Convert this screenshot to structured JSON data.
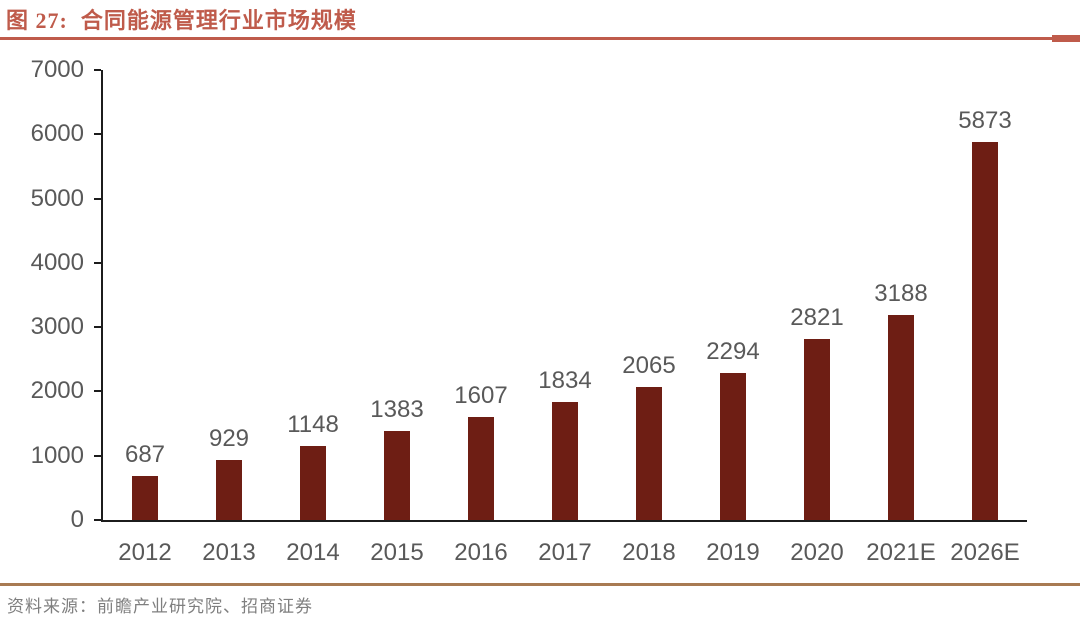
{
  "figure": {
    "title": "图 27:  合同能源管理行业市场规模",
    "source": "资料来源：前瞻产业研究院、招商证券"
  },
  "colors": {
    "title": "#bf5b4b",
    "title_rule": "#bf5b4b",
    "bottom_rule": "#a87a52",
    "bar": "#6e1e14",
    "axis": "#1c1c1c",
    "label": "#595959",
    "source_text": "#7f7f7f"
  },
  "chart_data": {
    "type": "bar",
    "title": "合同能源管理行业市场规模",
    "categories": [
      "2012",
      "2013",
      "2014",
      "2015",
      "2016",
      "2017",
      "2018",
      "2019",
      "2020",
      "2021E",
      "2026E"
    ],
    "values": [
      687,
      929,
      1148,
      1383,
      1607,
      1834,
      2065,
      2294,
      2821,
      3188,
      5873
    ],
    "xlabel": "",
    "ylabel": "",
    "ylim": [
      0,
      7000
    ],
    "ytick_step": 1000,
    "yticks": [
      0,
      1000,
      2000,
      3000,
      4000,
      5000,
      6000,
      7000
    ],
    "grid": false,
    "legend": false,
    "data_labels": true,
    "bar_color": "#6e1e14"
  }
}
